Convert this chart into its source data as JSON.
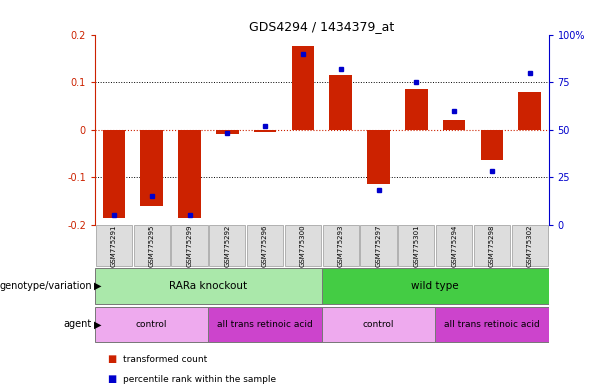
{
  "title": "GDS4294 / 1434379_at",
  "samples": [
    "GSM775291",
    "GSM775295",
    "GSM775299",
    "GSM775292",
    "GSM775296",
    "GSM775300",
    "GSM775293",
    "GSM775297",
    "GSM775301",
    "GSM775294",
    "GSM775298",
    "GSM775302"
  ],
  "bar_values": [
    -0.185,
    -0.16,
    -0.185,
    -0.01,
    -0.005,
    0.175,
    0.115,
    -0.115,
    0.085,
    0.02,
    -0.065,
    0.08
  ],
  "dot_values": [
    5,
    15,
    5,
    48,
    52,
    90,
    82,
    18,
    75,
    60,
    28,
    80
  ],
  "ylim_left": [
    -0.2,
    0.2
  ],
  "ylim_right": [
    0,
    100
  ],
  "yticks_left": [
    -0.2,
    -0.1,
    0,
    0.1,
    0.2
  ],
  "yticks_right": [
    0,
    25,
    50,
    75,
    100
  ],
  "ytick_labels_left": [
    "-0.2",
    "-0.1",
    "0",
    "0.1",
    "0.2"
  ],
  "ytick_labels_right": [
    "0",
    "25",
    "50",
    "75",
    "100%"
  ],
  "bar_color": "#cc2200",
  "dot_color": "#0000cc",
  "zero_line_color": "#cc2200",
  "dotted_line_color": "#000000",
  "genotype_groups": [
    {
      "label": "RARa knockout",
      "start": 0,
      "end": 6,
      "color": "#aae8aa"
    },
    {
      "label": "wild type",
      "start": 6,
      "end": 12,
      "color": "#44cc44"
    }
  ],
  "agent_groups": [
    {
      "label": "control",
      "start": 0,
      "end": 3,
      "color": "#eeaaee"
    },
    {
      "label": "all trans retinoic acid",
      "start": 3,
      "end": 6,
      "color": "#cc44cc"
    },
    {
      "label": "control",
      "start": 6,
      "end": 9,
      "color": "#eeaaee"
    },
    {
      "label": "all trans retinoic acid",
      "start": 9,
      "end": 12,
      "color": "#cc44cc"
    }
  ],
  "legend_items": [
    {
      "label": "transformed count",
      "color": "#cc2200"
    },
    {
      "label": "percentile rank within the sample",
      "color": "#0000cc"
    }
  ],
  "genotype_label": "genotype/variation",
  "agent_label": "agent",
  "background_color": "#ffffff"
}
